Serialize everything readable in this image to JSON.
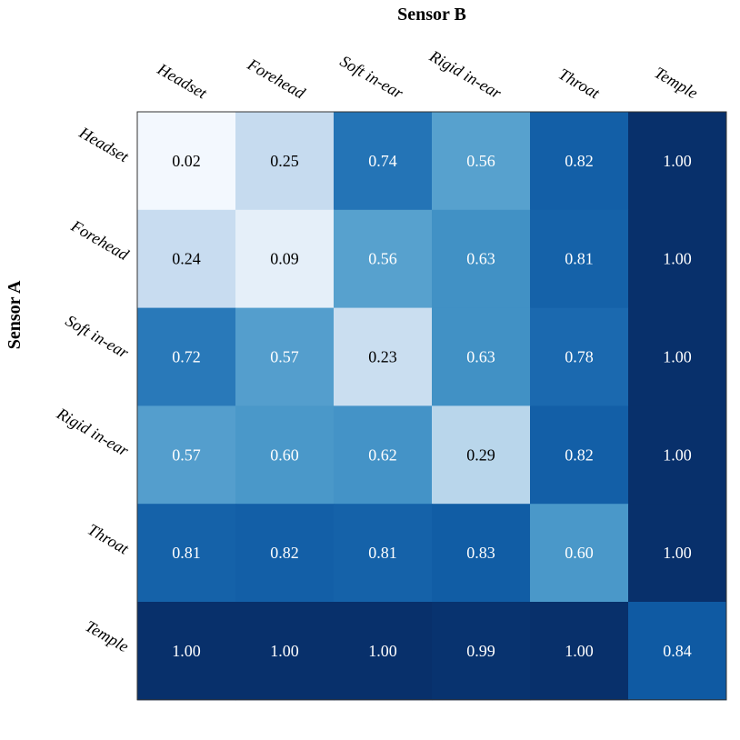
{
  "chart_data": {
    "type": "heatmap",
    "title": "",
    "xlabel": "Sensor B",
    "ylabel": "Sensor A",
    "x_categories": [
      "Headset",
      "Forehead",
      "Soft in-ear",
      "Rigid in-ear",
      "Throat",
      "Temple"
    ],
    "y_categories": [
      "Headset",
      "Forehead",
      "Soft in-ear",
      "Rigid in-ear",
      "Throat",
      "Temple"
    ],
    "values": [
      [
        0.02,
        0.25,
        0.74,
        0.56,
        0.82,
        1.0
      ],
      [
        0.24,
        0.09,
        0.56,
        0.63,
        0.81,
        1.0
      ],
      [
        0.72,
        0.57,
        0.23,
        0.63,
        0.78,
        1.0
      ],
      [
        0.57,
        0.6,
        0.62,
        0.29,
        0.82,
        1.0
      ],
      [
        0.81,
        0.82,
        0.81,
        0.83,
        0.6,
        1.0
      ],
      [
        1.0,
        1.0,
        1.0,
        0.99,
        1.0,
        0.84
      ]
    ],
    "value_format": "0.00",
    "color_range": [
      0,
      1
    ],
    "colormap": "Blues",
    "legend": "none"
  }
}
